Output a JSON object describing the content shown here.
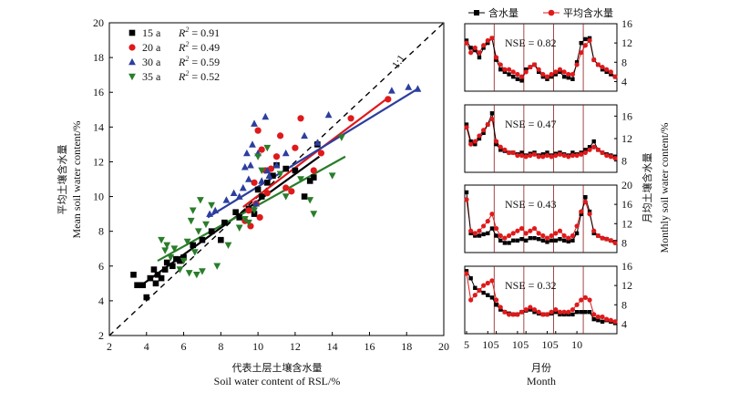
{
  "scatter": {
    "type": "scatter",
    "xlabel_cn": "代表土层土壤含水量",
    "xlabel_en": "Soil water content of RSL/%",
    "ylabel_cn": "平均土壤含水量",
    "ylabel_en": "Mean soil water content/%",
    "xlim": [
      2,
      20
    ],
    "ylim": [
      2,
      20
    ],
    "xticks": [
      2,
      4,
      6,
      8,
      10,
      12,
      14,
      16,
      18,
      20
    ],
    "yticks": [
      2,
      4,
      6,
      8,
      10,
      12,
      14,
      16,
      18,
      20
    ],
    "one_to_one_label": "1:1",
    "legend_position": "top-left",
    "series": [
      {
        "name": "15 a",
        "r2": "R2 = 0.91",
        "marker": "square",
        "color": "#000000",
        "fit": [
          [
            3.6,
            4.8
          ],
          [
            13.3,
            12.3
          ]
        ],
        "points": [
          [
            3.3,
            5.5
          ],
          [
            3.5,
            4.9
          ],
          [
            3.8,
            4.9
          ],
          [
            4.0,
            4.2
          ],
          [
            4.2,
            5.3
          ],
          [
            4.4,
            5.8
          ],
          [
            4.5,
            5.0
          ],
          [
            4.6,
            5.5
          ],
          [
            4.8,
            5.3
          ],
          [
            5.0,
            5.8
          ],
          [
            5.1,
            6.2
          ],
          [
            5.4,
            6.0
          ],
          [
            5.6,
            6.4
          ],
          [
            5.8,
            6.3
          ],
          [
            6.0,
            6.5
          ],
          [
            6.5,
            7.2
          ],
          [
            7.0,
            7.5
          ],
          [
            7.5,
            8.0
          ],
          [
            8.0,
            7.5
          ],
          [
            8.2,
            8.5
          ],
          [
            8.8,
            9.1
          ],
          [
            9.0,
            8.8
          ],
          [
            9.5,
            9.3
          ],
          [
            9.8,
            9.0
          ],
          [
            10.0,
            10.4
          ],
          [
            10.2,
            10.0
          ],
          [
            10.5,
            10.8
          ],
          [
            10.8,
            11.2
          ],
          [
            11.0,
            11.8
          ],
          [
            11.5,
            11.6
          ],
          [
            12.0,
            11.5
          ],
          [
            12.5,
            10.0
          ],
          [
            12.8,
            10.9
          ],
          [
            13.0,
            11.1
          ],
          [
            13.2,
            13.0
          ]
        ]
      },
      {
        "name": "20 a",
        "r2": "R2 = 0.49",
        "marker": "circle",
        "color": "#e0191b",
        "fit": [
          [
            9.2,
            9.4
          ],
          [
            16.9,
            15.6
          ]
        ],
        "points": [
          [
            9.3,
            8.6
          ],
          [
            9.5,
            9.2
          ],
          [
            9.6,
            8.3
          ],
          [
            9.8,
            10.8
          ],
          [
            9.9,
            9.6
          ],
          [
            10.0,
            13.8
          ],
          [
            10.1,
            8.8
          ],
          [
            10.2,
            12.7
          ],
          [
            10.4,
            11.5
          ],
          [
            10.5,
            10.2
          ],
          [
            10.7,
            11.6
          ],
          [
            11.0,
            12.3
          ],
          [
            11.2,
            13.5
          ],
          [
            11.5,
            10.5
          ],
          [
            11.8,
            10.3
          ],
          [
            12.0,
            12.8
          ],
          [
            12.3,
            14.5
          ],
          [
            13.0,
            11.5
          ],
          [
            13.4,
            12.5
          ],
          [
            15.0,
            14.5
          ],
          [
            17.0,
            15.6
          ]
        ]
      },
      {
        "name": "30 a",
        "r2": "R2 = 0.59",
        "marker": "triangle-up",
        "color": "#2c3e9e",
        "fit": [
          [
            7.3,
            8.8
          ],
          [
            18.6,
            16.2
          ]
        ],
        "points": [
          [
            7.4,
            9.0
          ],
          [
            7.7,
            9.2
          ],
          [
            8.3,
            9.8
          ],
          [
            8.7,
            10.2
          ],
          [
            9.0,
            10.0
          ],
          [
            9.2,
            10.5
          ],
          [
            9.3,
            11.7
          ],
          [
            9.4,
            12.5
          ],
          [
            9.5,
            11.0
          ],
          [
            9.6,
            11.8
          ],
          [
            9.7,
            13.0
          ],
          [
            9.8,
            14.2
          ],
          [
            9.9,
            9.6
          ],
          [
            10.0,
            12.5
          ],
          [
            10.2,
            10.9
          ],
          [
            10.4,
            14.6
          ],
          [
            10.5,
            11.5
          ],
          [
            10.6,
            11.2
          ],
          [
            11.0,
            11.8
          ],
          [
            11.5,
            12.5
          ],
          [
            12.5,
            13.5
          ],
          [
            13.2,
            13.1
          ],
          [
            13.8,
            14.7
          ],
          [
            17.2,
            16.1
          ],
          [
            18.1,
            16.3
          ],
          [
            18.6,
            16.2
          ]
        ]
      },
      {
        "name": "35 a",
        "r2": "R2 = 0.52",
        "marker": "triangle-down",
        "color": "#2a7d2a",
        "fit": [
          [
            4.6,
            6.3
          ],
          [
            14.7,
            12.3
          ]
        ],
        "points": [
          [
            4.8,
            7.5
          ],
          [
            5.0,
            6.9
          ],
          [
            5.1,
            7.2
          ],
          [
            5.3,
            6.5
          ],
          [
            5.5,
            7.0
          ],
          [
            5.8,
            5.8
          ],
          [
            6.0,
            6.3
          ],
          [
            6.2,
            7.4
          ],
          [
            6.3,
            5.6
          ],
          [
            6.4,
            8.6
          ],
          [
            6.5,
            9.2
          ],
          [
            6.6,
            6.8
          ],
          [
            6.7,
            5.5
          ],
          [
            6.8,
            8.0
          ],
          [
            6.9,
            9.8
          ],
          [
            7.0,
            5.7
          ],
          [
            7.2,
            8.4
          ],
          [
            7.5,
            9.5
          ],
          [
            7.8,
            6.0
          ],
          [
            8.4,
            7.2
          ],
          [
            9.0,
            8.2
          ],
          [
            9.3,
            8.7
          ],
          [
            9.5,
            8.5
          ],
          [
            9.8,
            9.2
          ],
          [
            10.0,
            12.3
          ],
          [
            10.2,
            11.5
          ],
          [
            10.5,
            12.8
          ],
          [
            11.2,
            11.3
          ],
          [
            11.5,
            10.0
          ],
          [
            12.3,
            11.0
          ],
          [
            12.8,
            9.8
          ],
          [
            13.0,
            9.0
          ],
          [
            14.0,
            11.2
          ],
          [
            14.5,
            13.4
          ]
        ]
      }
    ]
  },
  "monthly": {
    "legend": {
      "measured": "含水量",
      "mean": "平均含水量"
    },
    "ylabel_cn": "月均土壤含水量",
    "ylabel_en": "Monthly soil water content/%",
    "xlabel_cn": "月份",
    "xlabel_en": "Month",
    "month_ticks": [
      "5",
      "10",
      "5",
      "10",
      "5",
      "10",
      "5",
      "10"
    ],
    "measured_color": "#000000",
    "mean_color": "#e0191b",
    "panels": [
      {
        "nse": "NSE = 0.82",
        "ylim": [
          2,
          16
        ],
        "yticks": [
          "4",
          "8",
          "12",
          "16"
        ],
        "measured": [
          12.5,
          11.0,
          10.5,
          9.0,
          11.0,
          12.0,
          13.0,
          8.5,
          6.5,
          6.0,
          5.5,
          5.0,
          4.5,
          4.2,
          6.5,
          7.0,
          7.5,
          6.0,
          5.0,
          4.5,
          5.0,
          5.5,
          6.0,
          5.0,
          4.8,
          4.5,
          8.0,
          12.0,
          12.8,
          13.0,
          8.5,
          7.5,
          6.5,
          6.0,
          5.5,
          5.0
        ],
        "mean": [
          12.0,
          10.0,
          11.0,
          10.0,
          11.5,
          12.5,
          13.0,
          9.0,
          7.5,
          6.5,
          6.5,
          6.0,
          5.5,
          5.0,
          6.0,
          7.0,
          7.5,
          6.5,
          5.5,
          5.0,
          5.5,
          6.0,
          6.5,
          6.0,
          5.5,
          5.5,
          7.5,
          10.0,
          11.5,
          12.5,
          8.5,
          7.5,
          7.0,
          6.5,
          6.0,
          5.0
        ]
      },
      {
        "nse": "NSE = 0.47",
        "ylim": [
          6,
          18
        ],
        "yticks": [
          "8",
          "12",
          "16"
        ],
        "measured": [
          14.5,
          11.5,
          11.0,
          12.0,
          13.0,
          14.5,
          16.5,
          11.0,
          10.0,
          9.8,
          9.5,
          9.5,
          9.2,
          9.5,
          9.0,
          9.3,
          9.5,
          9.0,
          9.2,
          9.5,
          9.0,
          9.3,
          9.5,
          9.2,
          9.0,
          9.5,
          9.2,
          9.5,
          10.0,
          10.5,
          11.5,
          10.0,
          9.5,
          9.2,
          9.0,
          8.8
        ],
        "mean": [
          14.0,
          11.0,
          11.5,
          12.5,
          13.5,
          14.5,
          15.5,
          11.5,
          10.5,
          10.0,
          9.5,
          9.5,
          9.0,
          9.0,
          8.8,
          9.0,
          9.2,
          8.8,
          8.8,
          9.0,
          8.8,
          9.0,
          9.2,
          9.0,
          8.8,
          9.0,
          9.0,
          9.2,
          9.5,
          10.0,
          10.5,
          10.0,
          9.5,
          9.0,
          8.8,
          8.5
        ]
      },
      {
        "nse": "NSE = 0.43",
        "ylim": [
          6,
          20
        ],
        "yticks": [
          "8",
          "12",
          "16",
          "20"
        ],
        "measured": [
          18.5,
          10.0,
          9.5,
          9.5,
          9.8,
          10.0,
          11.0,
          9.5,
          8.5,
          8.0,
          8.0,
          8.5,
          8.5,
          8.8,
          8.5,
          9.0,
          9.0,
          8.8,
          8.5,
          8.2,
          8.5,
          8.5,
          8.8,
          8.5,
          8.3,
          8.5,
          10.0,
          14.0,
          17.5,
          14.5,
          10.0,
          9.5,
          9.0,
          8.8,
          8.5,
          8.2
        ],
        "mean": [
          17.0,
          10.5,
          10.0,
          10.5,
          11.5,
          12.5,
          14.0,
          11.0,
          9.5,
          9.0,
          9.5,
          10.0,
          10.5,
          11.0,
          10.0,
          10.5,
          11.0,
          10.0,
          9.5,
          9.0,
          9.5,
          10.0,
          10.5,
          9.5,
          9.0,
          9.5,
          11.5,
          14.5,
          16.5,
          14.0,
          10.5,
          9.5,
          9.0,
          8.8,
          8.5,
          8.0
        ]
      },
      {
        "nse": "NSE = 0.32",
        "ylim": [
          2,
          16
        ],
        "yticks": [
          "4",
          "8",
          "12",
          "16"
        ],
        "measured": [
          15.0,
          13.5,
          11.5,
          11.0,
          10.5,
          10.0,
          9.5,
          8.0,
          7.0,
          6.5,
          6.2,
          6.0,
          6.0,
          6.5,
          6.8,
          7.0,
          6.5,
          6.2,
          6.0,
          6.0,
          6.2,
          6.5,
          6.0,
          6.0,
          6.0,
          6.0,
          6.5,
          6.5,
          6.5,
          6.5,
          5.0,
          4.8,
          4.5,
          4.8,
          4.5,
          4.2
        ],
        "mean": [
          14.5,
          9.0,
          10.0,
          11.0,
          12.0,
          12.5,
          13.0,
          9.0,
          7.5,
          6.5,
          6.0,
          6.0,
          6.0,
          6.5,
          7.0,
          7.5,
          7.0,
          6.5,
          6.0,
          6.0,
          6.5,
          7.0,
          6.5,
          6.5,
          6.5,
          7.0,
          8.0,
          9.0,
          9.5,
          9.0,
          6.0,
          5.5,
          5.5,
          5.0,
          4.8,
          4.5
        ]
      }
    ]
  }
}
